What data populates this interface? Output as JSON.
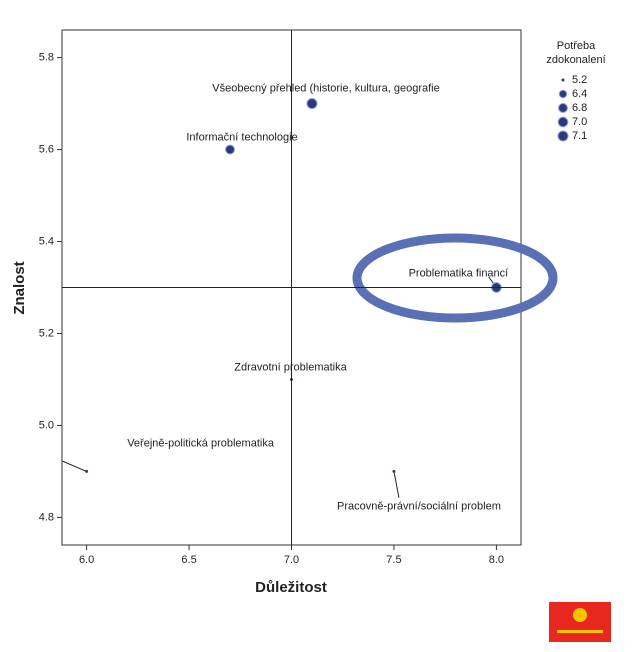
{
  "chart_data": {
    "type": "bubble",
    "x_label": "Důležitost",
    "y_label": "Znalost",
    "xlim": [
      5.88,
      8.12
    ],
    "ylim": [
      4.74,
      5.86
    ],
    "xticks": [
      {
        "value": 6.0,
        "label": "6.0"
      },
      6.5,
      {
        "value": 7.0,
        "label": "7.0"
      },
      7.5,
      {
        "value": 8.0,
        "label": "8.0"
      }
    ],
    "yticks": [
      4.8,
      {
        "value": 5.0,
        "label": "5.0"
      },
      5.2,
      5.4,
      5.6,
      5.8
    ],
    "reference_lines": {
      "x": 7.0,
      "y": 5.3
    },
    "color": "#2b3a7a",
    "points": [
      {
        "label": "Všeobecný přehled (historie, kultura, geografie",
        "x": 7.1,
        "y": 5.7,
        "size": 7.1
      },
      {
        "label": "Informační technologie",
        "x": 6.7,
        "y": 5.6,
        "size": 6.8
      },
      {
        "label": "Problematika financí",
        "x": 8.0,
        "y": 5.3,
        "size": 7.0
      },
      {
        "label": "Zdravotní problematika",
        "x": 7.0,
        "y": 5.1,
        "size": 5.2
      },
      {
        "label": "Veřejně-politická problematika",
        "x": 6.0,
        "y": 4.9,
        "size": 5.2
      },
      {
        "label": "Pracovně-právní/sociální problem",
        "x": 7.5,
        "y": 4.9,
        "size": 5.2
      }
    ],
    "legend_title": [
      "Potřeba",
      "zdokonalení"
    ],
    "size_legend": [
      5.2,
      6.4,
      6.8,
      {
        "value": 7.0,
        "label": "7.0"
      },
      7.1
    ]
  }
}
